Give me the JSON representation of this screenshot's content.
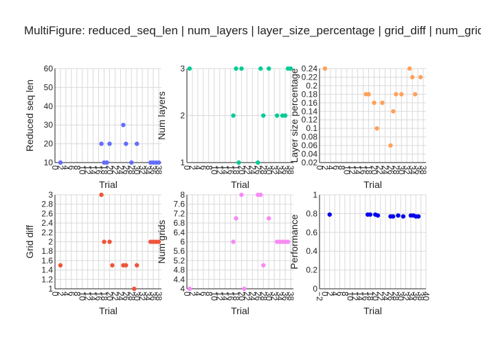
{
  "figure": {
    "title": "MultiFigure: reduced_seq_len | num_layers | layer_size_percentage | grid_diff | num_grids"
  },
  "chart_data": [
    {
      "type": "scatter",
      "xlabel": "Trial",
      "ylabel": "Reduced seq len",
      "color": "#636efa",
      "xlim": [
        0,
        39
      ],
      "ylim": [
        10,
        60
      ],
      "xticks": [
        0,
        2,
        4,
        6,
        8,
        10,
        12,
        14,
        16,
        18,
        20,
        22,
        24,
        26,
        28,
        30,
        32,
        34,
        36,
        38
      ],
      "yticks": [
        10,
        20,
        30,
        40,
        50,
        60
      ],
      "x": [
        2,
        17,
        18,
        19,
        20,
        25,
        26,
        28,
        30,
        35,
        36,
        37,
        38
      ],
      "y": [
        10,
        20,
        10,
        10,
        20,
        30,
        20,
        10,
        20,
        10,
        10,
        10,
        10
      ]
    },
    {
      "type": "scatter",
      "xlabel": "Trial",
      "ylabel": "Num layers",
      "color": "#00cc96",
      "xlim": [
        0,
        39
      ],
      "ylim": [
        1,
        3
      ],
      "xticks": [
        0,
        2,
        4,
        6,
        8,
        10,
        12,
        14,
        16,
        18,
        20,
        22,
        24,
        26,
        28,
        30,
        32,
        34,
        36,
        38
      ],
      "yticks": [
        1,
        2,
        3
      ],
      "x": [
        1,
        17,
        18,
        19,
        20,
        26,
        27,
        28,
        30,
        33,
        35,
        36,
        37,
        38
      ],
      "y": [
        3,
        2,
        3,
        1,
        3,
        1,
        3,
        2,
        3,
        2,
        2,
        2,
        3,
        3
      ]
    },
    {
      "type": "scatter",
      "xlabel": "Trial",
      "ylabel": "Layer size percentage",
      "color": "#ffa15a",
      "xlim": [
        0,
        39
      ],
      "ylim": [
        0.02,
        0.24
      ],
      "xticks": [
        0,
        2,
        4,
        6,
        8,
        10,
        12,
        14,
        16,
        18,
        20,
        22,
        24,
        26,
        28,
        30,
        32,
        34,
        36,
        38
      ],
      "yticks": [
        0.02,
        0.04,
        0.06,
        0.08,
        0.1,
        0.12,
        0.14,
        0.16,
        0.18,
        0.2,
        0.22,
        0.24
      ],
      "x": [
        2,
        17,
        18,
        20,
        21,
        23,
        26,
        27,
        28,
        30,
        33,
        34,
        35,
        37
      ],
      "y": [
        0.24,
        0.18,
        0.18,
        0.16,
        0.1,
        0.16,
        0.06,
        0.14,
        0.18,
        0.18,
        0.24,
        0.22,
        0.18,
        0.22
      ]
    },
    {
      "type": "scatter",
      "xlabel": "Trial",
      "ylabel": "Grid diff",
      "color": "#ef553b",
      "xlim": [
        0,
        39
      ],
      "ylim": [
        1,
        3
      ],
      "xticks": [
        0,
        2,
        4,
        6,
        8,
        10,
        12,
        14,
        16,
        18,
        20,
        22,
        24,
        26,
        28,
        30,
        32,
        34,
        36,
        38
      ],
      "yticks": [
        1,
        1.2,
        1.4,
        1.6,
        1.8,
        2,
        2.2,
        2.4,
        2.6,
        2.8,
        3
      ],
      "x": [
        2,
        17,
        18,
        20,
        21,
        25,
        26,
        29,
        30,
        35,
        36,
        37,
        38
      ],
      "y": [
        1.5,
        3,
        2,
        2,
        1.5,
        1.5,
        1.5,
        1,
        1.5,
        2,
        2,
        2,
        2
      ]
    },
    {
      "type": "scatter",
      "xlabel": "Trial",
      "ylabel": "Num grids",
      "color": "#f78bf5",
      "xlim": [
        0,
        39
      ],
      "ylim": [
        4,
        8
      ],
      "xticks": [
        0,
        2,
        4,
        6,
        8,
        10,
        12,
        14,
        16,
        18,
        20,
        22,
        24,
        26,
        28,
        30,
        32,
        34,
        36,
        38
      ],
      "yticks": [
        4,
        4.4,
        4.8,
        5.2,
        5.6,
        6,
        6.4,
        6.8,
        7.2,
        7.6,
        8
      ],
      "x": [
        1,
        17,
        18,
        20,
        21,
        26,
        27,
        28,
        30,
        33,
        34,
        35,
        36,
        37
      ],
      "y": [
        4,
        6,
        7,
        8,
        4,
        8,
        8,
        5,
        7,
        6,
        6,
        6,
        6,
        6
      ]
    },
    {
      "type": "scatter",
      "xlabel": "Trial",
      "ylabel": "Performance",
      "color": "#0000ee",
      "xlim": [
        -2,
        40
      ],
      "ylim": [
        0,
        1
      ],
      "xticks": [
        -2,
        0,
        2,
        4,
        6,
        8,
        10,
        12,
        14,
        16,
        18,
        20,
        22,
        24,
        26,
        28,
        30,
        32,
        34,
        36,
        38,
        40
      ],
      "yticks": [
        0,
        0.2,
        0.4,
        0.6,
        0.8,
        1
      ],
      "x": [
        2,
        17,
        18,
        20,
        21,
        26,
        27,
        29,
        31,
        34,
        35,
        36,
        37
      ],
      "y": [
        0.79,
        0.79,
        0.79,
        0.79,
        0.78,
        0.77,
        0.77,
        0.78,
        0.77,
        0.78,
        0.78,
        0.77,
        0.77
      ]
    }
  ]
}
